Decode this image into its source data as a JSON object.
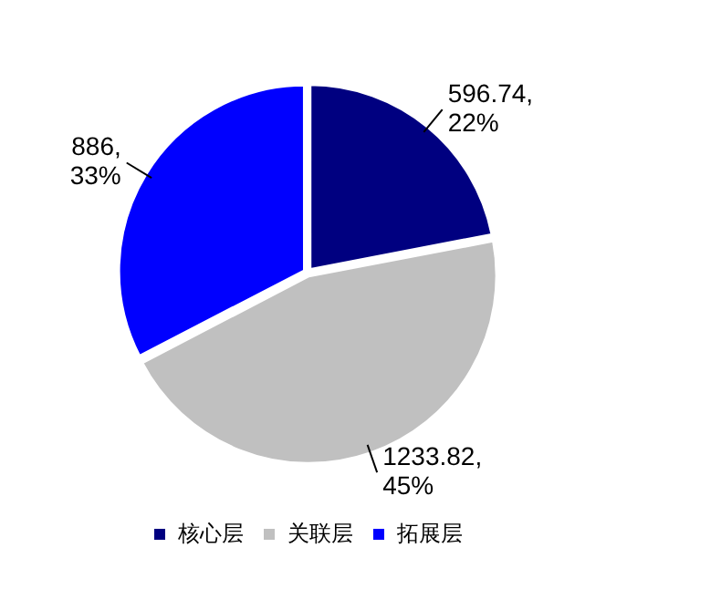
{
  "chart_data": {
    "type": "pie",
    "categories": [
      "核心层",
      "关联层",
      "拓展层"
    ],
    "values": [
      596.74,
      1233.82,
      886
    ],
    "colors": [
      "#000080",
      "#c0c0c0",
      "#0000ff"
    ],
    "value_labels": [
      "596.74, 22%",
      "1233.82, 45%",
      "886, 33%"
    ],
    "legend": "bottom"
  }
}
